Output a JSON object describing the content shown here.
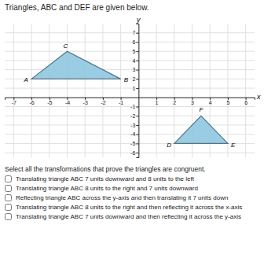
{
  "chart_data": {
    "type": "polygon",
    "title": "Triangles, ABC and DEF are given below.",
    "x_label": "x",
    "y_label": "y",
    "series": [
      {
        "x": [
          -6,
          -1,
          -4
        ],
        "y": [
          2,
          2,
          5
        ],
        "labels": [
          "A",
          "B",
          "C"
        ],
        "color": "#8fc8e0"
      },
      {
        "x": [
          2,
          5,
          3.5
        ],
        "y": [
          -5,
          -5,
          -2
        ],
        "labels": [
          "D",
          "E",
          "F"
        ],
        "color": "#8fc8e0"
      }
    ],
    "xlim": [
      -7.5,
      6.5
    ],
    "ylim": [
      -6.5,
      8.0
    ],
    "xticks": [
      -7,
      -6,
      -5,
      -4,
      -3,
      -2,
      -1,
      1,
      2,
      3,
      4,
      5,
      6
    ],
    "yticks": [
      -6,
      -5,
      -4,
      -3,
      -2,
      -1,
      1,
      2,
      3,
      4,
      5,
      6,
      7
    ],
    "grid": true
  },
  "question": {
    "text": "Select all the transformations that prove the triangles are congruent.",
    "choices": [
      "Translating triangle ABC 7 units downward and 8 units to the left",
      "Translating triangle ABC 8 units to the right and 7 units downward",
      "Reflecting triangle ABC across the y-axis and then translating it 7 units down",
      "Translating triangle ABC 8 units to the right and then reflecting it across the x-axis",
      "Translating triangle ABC 7 units downward and then reflecting it across the y-axis"
    ]
  }
}
